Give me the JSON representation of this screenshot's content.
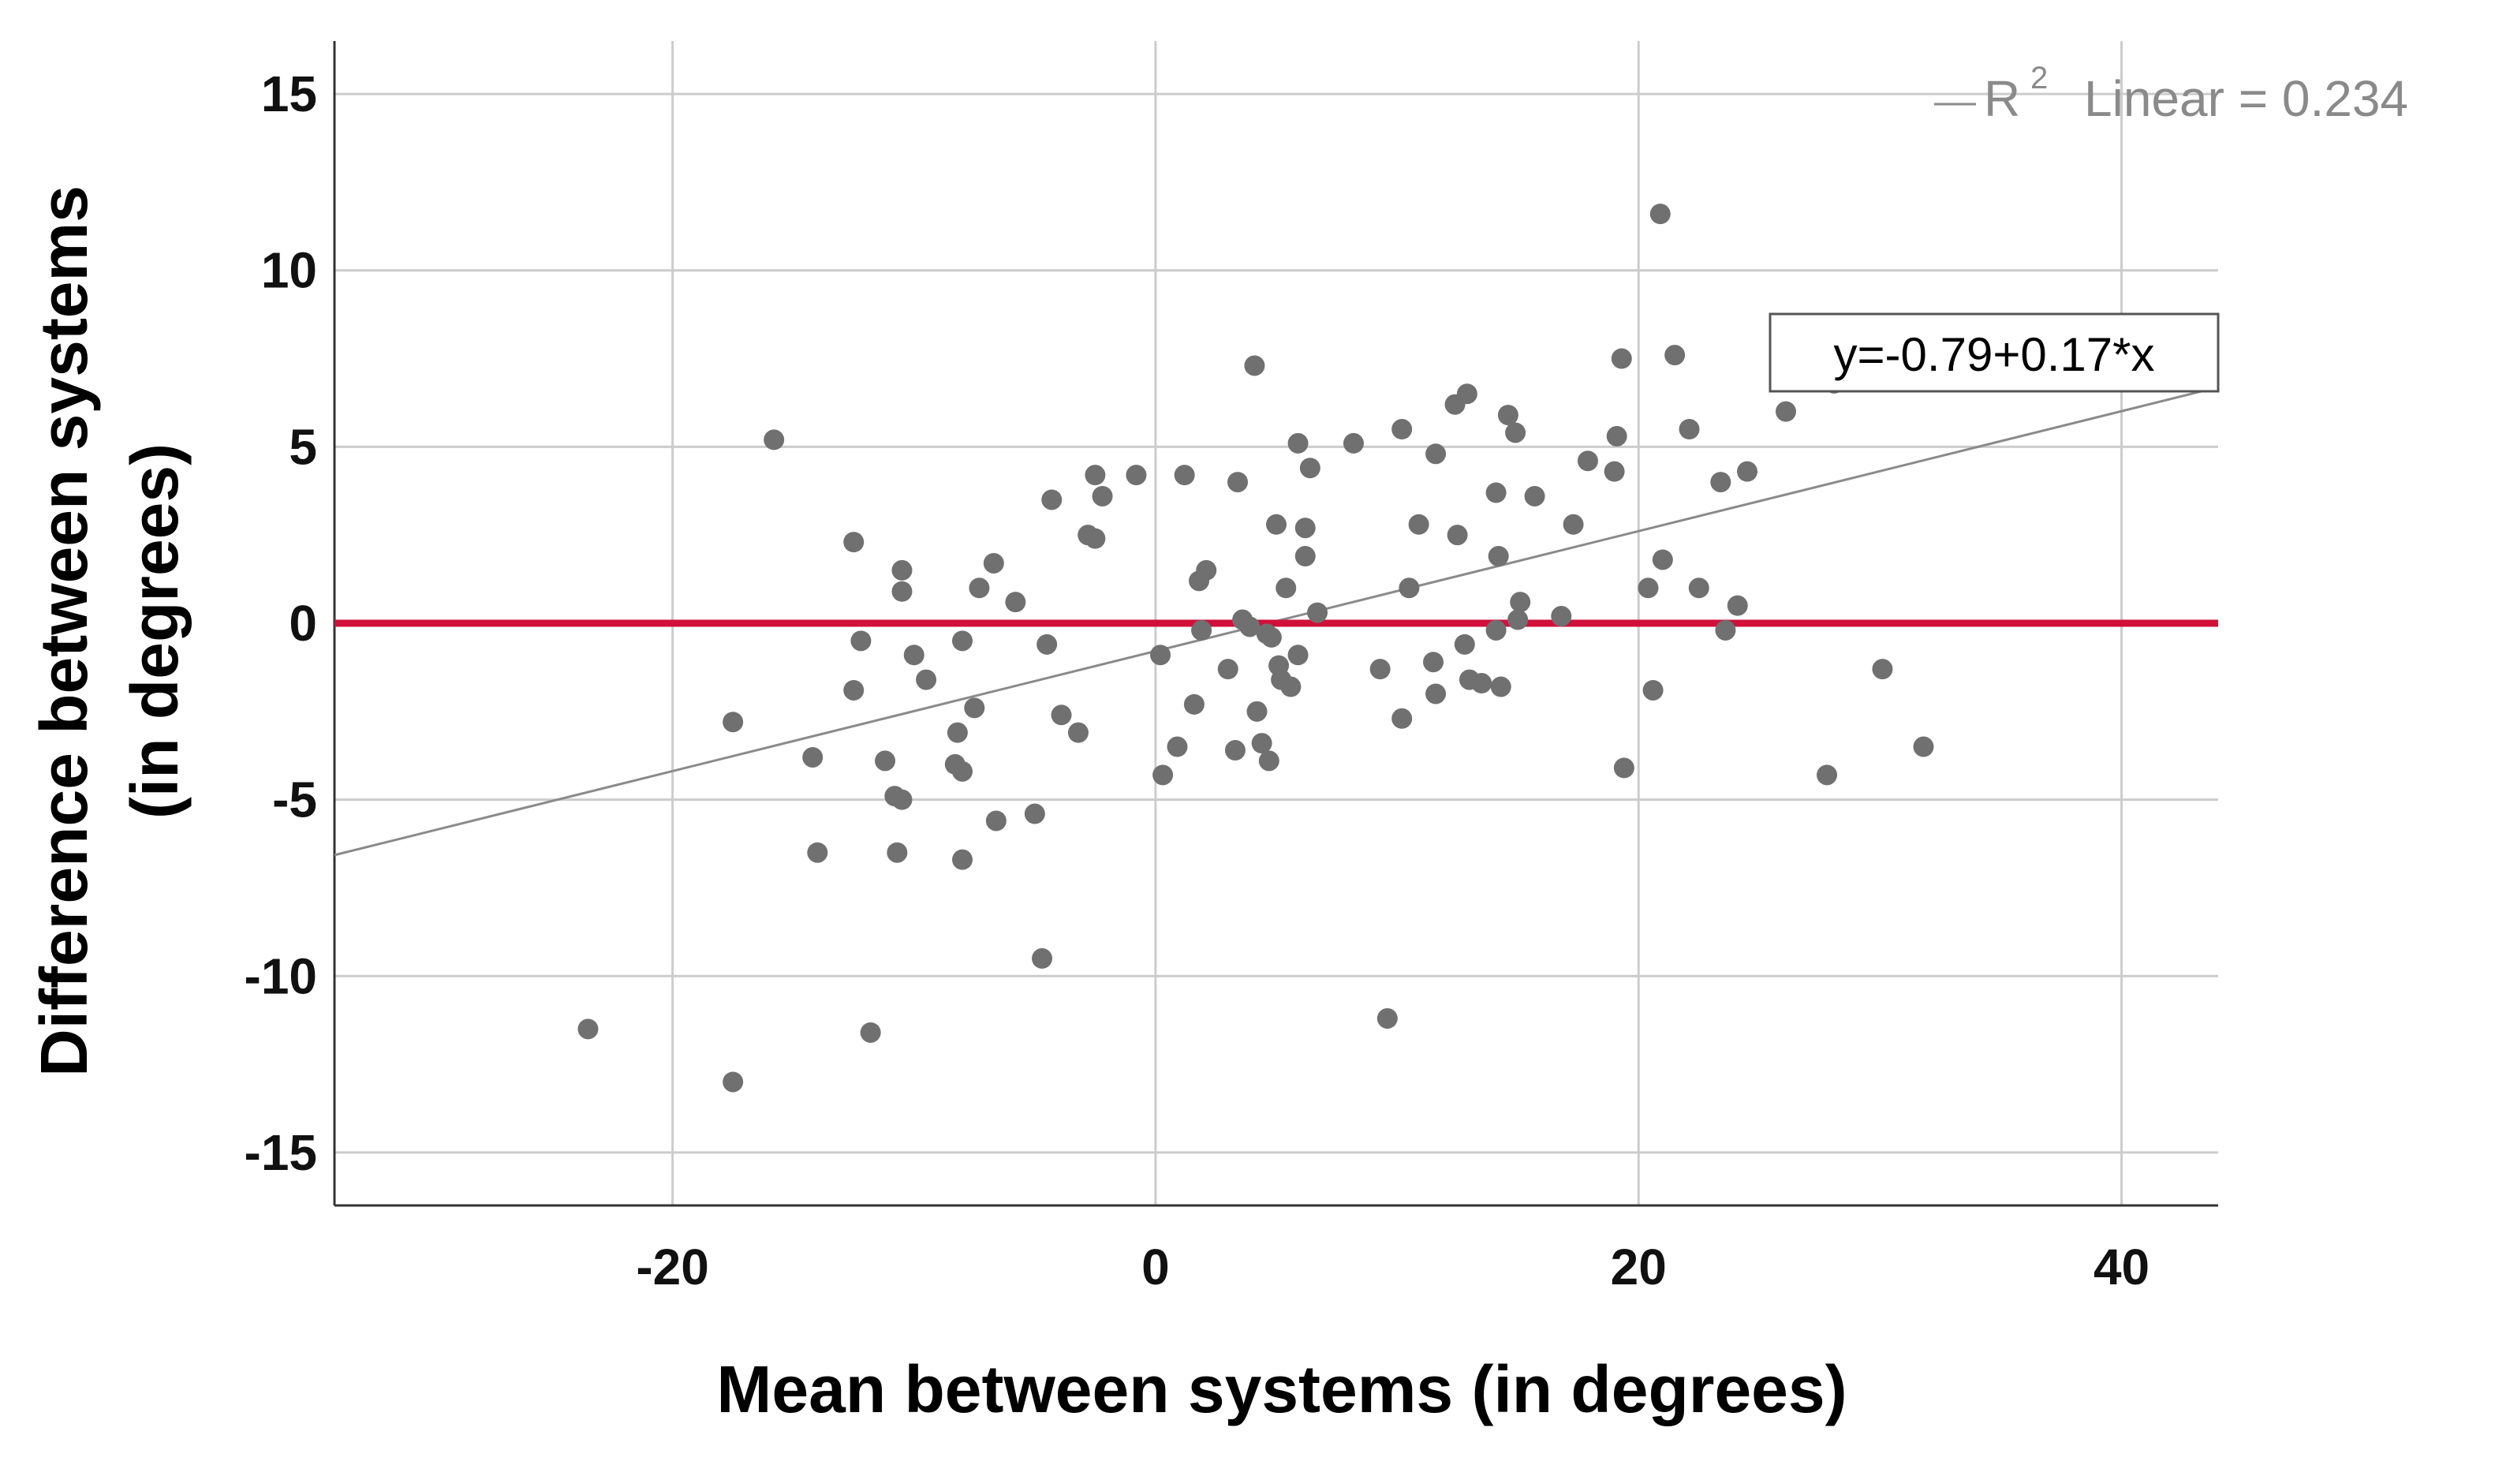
{
  "chart_data": {
    "type": "scatter",
    "xlabel": "Mean between systems (in degrees)",
    "ylabel_line1": "Difference between systems",
    "ylabel_line2": "(in degrees)",
    "xlim": [
      -34,
      44
    ],
    "ylim": [
      -16.5,
      16.5
    ],
    "x_ticks": [
      -20,
      0,
      20,
      40
    ],
    "y_ticks": [
      -15,
      -10,
      -5,
      0,
      5,
      10,
      15
    ],
    "grid": true,
    "r2_label": "R",
    "r2_superscript": "2",
    "r2_value_text": "Linear = 0.234",
    "fit_equation": "y=-0.79+0.17*x",
    "fit_line": {
      "intercept": -0.79,
      "slope": 0.17
    },
    "reference_line": {
      "y": 0,
      "color": "#d0103a"
    },
    "point_color": "#707070",
    "fit_line_color": "#8a8a8a",
    "points": [
      [
        -23.5,
        -11.5
      ],
      [
        -17.5,
        -13.0
      ],
      [
        -17.5,
        -2.8
      ],
      [
        -15.8,
        5.2
      ],
      [
        -14.2,
        -3.8
      ],
      [
        -14.0,
        -6.5
      ],
      [
        -12.5,
        2.3
      ],
      [
        -12.5,
        -1.9
      ],
      [
        -12.2,
        -0.5
      ],
      [
        -11.8,
        -11.6
      ],
      [
        -11.2,
        -3.9
      ],
      [
        -10.8,
        -4.9
      ],
      [
        -10.7,
        -6.5
      ],
      [
        -10.5,
        1.5
      ],
      [
        -10.5,
        0.9
      ],
      [
        -10.5,
        -5.0
      ],
      [
        -10.0,
        -0.9
      ],
      [
        -9.5,
        -1.6
      ],
      [
        -8.3,
        -4.0
      ],
      [
        -8.2,
        -3.1
      ],
      [
        -8.0,
        -4.2
      ],
      [
        -8.0,
        -0.5
      ],
      [
        -8.0,
        -6.7
      ],
      [
        -7.5,
        -2.4
      ],
      [
        -7.3,
        1.0
      ],
      [
        -6.7,
        1.7
      ],
      [
        -6.6,
        -5.6
      ],
      [
        -5.8,
        0.6
      ],
      [
        -5.0,
        -5.4
      ],
      [
        -4.7,
        -9.5
      ],
      [
        -4.5,
        -0.6
      ],
      [
        -4.3,
        3.5
      ],
      [
        -3.9,
        -2.6
      ],
      [
        -3.2,
        -3.1
      ],
      [
        -2.8,
        2.5
      ],
      [
        -2.5,
        4.2
      ],
      [
        -2.5,
        2.4
      ],
      [
        -2.2,
        3.6
      ],
      [
        -0.8,
        4.2
      ],
      [
        0.2,
        -0.9
      ],
      [
        0.3,
        -4.3
      ],
      [
        0.9,
        -3.5
      ],
      [
        1.2,
        4.2
      ],
      [
        1.6,
        -2.3
      ],
      [
        1.8,
        1.2
      ],
      [
        1.9,
        -0.2
      ],
      [
        2.1,
        1.5
      ],
      [
        3.0,
        -1.3
      ],
      [
        3.3,
        -3.6
      ],
      [
        3.4,
        4.0
      ],
      [
        3.6,
        0.1
      ],
      [
        3.9,
        -0.1
      ],
      [
        4.1,
        7.3
      ],
      [
        4.2,
        -2.5
      ],
      [
        4.4,
        -3.4
      ],
      [
        4.6,
        -0.3
      ],
      [
        4.7,
        -3.9
      ],
      [
        4.8,
        -0.4
      ],
      [
        5.0,
        2.8
      ],
      [
        5.1,
        -1.2
      ],
      [
        5.2,
        -1.6
      ],
      [
        5.4,
        1.0
      ],
      [
        5.6,
        -1.8
      ],
      [
        5.9,
        -0.9
      ],
      [
        5.9,
        5.1
      ],
      [
        6.2,
        1.9
      ],
      [
        6.2,
        2.7
      ],
      [
        6.4,
        4.4
      ],
      [
        6.7,
        0.3
      ],
      [
        8.2,
        5.1
      ],
      [
        9.3,
        -1.3
      ],
      [
        9.6,
        -11.2
      ],
      [
        10.2,
        5.5
      ],
      [
        10.2,
        -2.7
      ],
      [
        10.5,
        1.0
      ],
      [
        10.9,
        2.8
      ],
      [
        11.5,
        -1.1
      ],
      [
        11.6,
        4.8
      ],
      [
        11.6,
        -2.0
      ],
      [
        12.4,
        6.2
      ],
      [
        12.5,
        2.5
      ],
      [
        12.8,
        -0.6
      ],
      [
        12.9,
        6.5
      ],
      [
        13.0,
        -1.6
      ],
      [
        13.5,
        -1.7
      ],
      [
        14.1,
        3.7
      ],
      [
        14.1,
        -0.2
      ],
      [
        14.2,
        1.9
      ],
      [
        14.3,
        -1.8
      ],
      [
        14.6,
        5.9
      ],
      [
        14.9,
        5.4
      ],
      [
        15.0,
        0.1
      ],
      [
        15.1,
        0.6
      ],
      [
        15.7,
        3.6
      ],
      [
        16.8,
        0.2
      ],
      [
        17.3,
        2.8
      ],
      [
        17.9,
        4.6
      ],
      [
        19.0,
        4.3
      ],
      [
        19.1,
        5.3
      ],
      [
        19.3,
        7.5
      ],
      [
        19.4,
        -4.1
      ],
      [
        20.4,
        1.0
      ],
      [
        20.6,
        -1.9
      ],
      [
        20.9,
        11.6
      ],
      [
        21.0,
        1.8
      ],
      [
        21.5,
        7.6
      ],
      [
        22.1,
        5.5
      ],
      [
        22.5,
        1.0
      ],
      [
        23.4,
        4.0
      ],
      [
        23.6,
        -0.2
      ],
      [
        24.1,
        0.5
      ],
      [
        24.5,
        4.3
      ],
      [
        26.1,
        6.0
      ],
      [
        27.8,
        -4.3
      ],
      [
        28.1,
        6.8
      ],
      [
        30.1,
        -1.3
      ],
      [
        31.8,
        -3.5
      ]
    ]
  }
}
